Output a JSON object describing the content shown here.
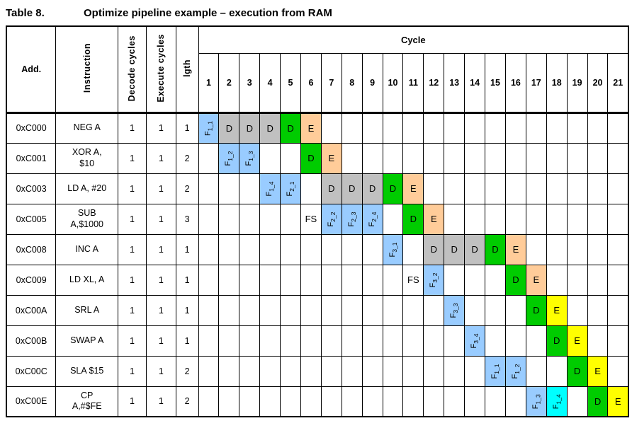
{
  "title": {
    "prefix": "Table 8.",
    "text": "Optimize pipeline example – execution from RAM"
  },
  "table": {
    "headers": {
      "add": "Add.",
      "instruction": "Instruction",
      "decode_cycles": "Decode cycles",
      "execute_cycles": "Execute  cycles",
      "length": "lgth",
      "cycle": "Cycle",
      "cycle_numbers": [
        "1",
        "2",
        "3",
        "4",
        "5",
        "6",
        "7",
        "8",
        "9",
        "10",
        "11",
        "12",
        "13",
        "14",
        "15",
        "16",
        "17",
        "18",
        "19",
        "20",
        "21"
      ]
    },
    "cell_colors": {
      "fetch": "#99CCFF",
      "fetch_alt": "#00FFFF",
      "stall": "#C0C0C0",
      "decode": "#00CC00",
      "execute": "#FFCC99",
      "execute_alt": "#FFFF00",
      "fs": "#FFFFFF"
    },
    "rows": [
      {
        "add": "0xC000",
        "instruction": "NEG A",
        "decode": "1",
        "execute": "1",
        "lgth": "1",
        "cells": [
          {
            "cycle": 1,
            "label": "F1_1",
            "type": "fetch",
            "rotated": true
          },
          {
            "cycle": 2,
            "label": "D",
            "type": "stall"
          },
          {
            "cycle": 3,
            "label": "D",
            "type": "stall"
          },
          {
            "cycle": 4,
            "label": "D",
            "type": "stall"
          },
          {
            "cycle": 5,
            "label": "D",
            "type": "decode"
          },
          {
            "cycle": 6,
            "label": "E",
            "type": "execute"
          }
        ]
      },
      {
        "add": "0xC001",
        "instruction": "XOR A,\n$10",
        "decode": "1",
        "execute": "1",
        "lgth": "2",
        "cells": [
          {
            "cycle": 2,
            "label": "F1_2",
            "type": "fetch",
            "rotated": true
          },
          {
            "cycle": 3,
            "label": "F1_3",
            "type": "fetch",
            "rotated": true
          },
          {
            "cycle": 6,
            "label": "D",
            "type": "decode"
          },
          {
            "cycle": 7,
            "label": "E",
            "type": "execute"
          }
        ]
      },
      {
        "add": "0xC003",
        "instruction": "LD  A, #20",
        "decode": "1",
        "execute": "1",
        "lgth": "2",
        "cells": [
          {
            "cycle": 4,
            "label": "F1_4",
            "type": "fetch",
            "rotated": true
          },
          {
            "cycle": 5,
            "label": "F2_1",
            "type": "fetch",
            "rotated": true
          },
          {
            "cycle": 7,
            "label": "D",
            "type": "stall"
          },
          {
            "cycle": 8,
            "label": "D",
            "type": "stall"
          },
          {
            "cycle": 9,
            "label": "D",
            "type": "stall"
          },
          {
            "cycle": 10,
            "label": "D",
            "type": "decode"
          },
          {
            "cycle": 11,
            "label": "E",
            "type": "execute"
          }
        ]
      },
      {
        "add": "0xC005",
        "instruction": "SUB\nA,$1000",
        "decode": "1",
        "execute": "1",
        "lgth": "3",
        "cells": [
          {
            "cycle": 6,
            "label": "FS",
            "type": "fs"
          },
          {
            "cycle": 7,
            "label": "F2_2",
            "type": "fetch",
            "rotated": true
          },
          {
            "cycle": 8,
            "label": "F2_3",
            "type": "fetch",
            "rotated": true
          },
          {
            "cycle": 9,
            "label": "F2_4",
            "type": "fetch",
            "rotated": true
          },
          {
            "cycle": 11,
            "label": "D",
            "type": "decode"
          },
          {
            "cycle": 12,
            "label": "E",
            "type": "execute"
          }
        ]
      },
      {
        "add": "0xC008",
        "instruction": "INC A",
        "decode": "1",
        "execute": "1",
        "lgth": "1",
        "cells": [
          {
            "cycle": 10,
            "label": "F3_1",
            "type": "fetch",
            "rotated": true
          },
          {
            "cycle": 12,
            "label": "D",
            "type": "stall"
          },
          {
            "cycle": 13,
            "label": "D",
            "type": "stall"
          },
          {
            "cycle": 14,
            "label": "D",
            "type": "stall"
          },
          {
            "cycle": 15,
            "label": "D",
            "type": "decode"
          },
          {
            "cycle": 16,
            "label": "E",
            "type": "execute"
          }
        ]
      },
      {
        "add": "0xC009",
        "instruction": "LD XL, A",
        "decode": "1",
        "execute": "1",
        "lgth": "1",
        "cells": [
          {
            "cycle": 11,
            "label": "FS",
            "type": "fs"
          },
          {
            "cycle": 12,
            "label": "F3_2",
            "type": "fetch",
            "rotated": true
          },
          {
            "cycle": 16,
            "label": "D",
            "type": "decode"
          },
          {
            "cycle": 17,
            "label": "E",
            "type": "execute"
          }
        ]
      },
      {
        "add": "0xC00A",
        "instruction": "SRL A",
        "decode": "1",
        "execute": "1",
        "lgth": "1",
        "cells": [
          {
            "cycle": 13,
            "label": "F3_3",
            "type": "fetch",
            "rotated": true
          },
          {
            "cycle": 17,
            "label": "D",
            "type": "decode"
          },
          {
            "cycle": 18,
            "label": "E",
            "type": "execute_alt"
          }
        ]
      },
      {
        "add": "0xC00B",
        "instruction": "SWAP A",
        "decode": "1",
        "execute": "1",
        "lgth": "1",
        "cells": [
          {
            "cycle": 14,
            "label": "F3_4",
            "type": "fetch",
            "rotated": true
          },
          {
            "cycle": 18,
            "label": "D",
            "type": "decode"
          },
          {
            "cycle": 19,
            "label": "E",
            "type": "execute_alt"
          }
        ]
      },
      {
        "add": "0xC00C",
        "instruction": "SLA $15",
        "decode": "1",
        "execute": "1",
        "lgth": "2",
        "cells": [
          {
            "cycle": 15,
            "label": "F1_1",
            "type": "fetch",
            "rotated": true
          },
          {
            "cycle": 16,
            "label": "F1_2",
            "type": "fetch",
            "rotated": true
          },
          {
            "cycle": 19,
            "label": "D",
            "type": "decode"
          },
          {
            "cycle": 20,
            "label": "E",
            "type": "execute_alt"
          }
        ]
      },
      {
        "add": "0xC00E",
        "instruction": "CP\nA,#$FE",
        "decode": "1",
        "execute": "1",
        "lgth": "2",
        "cells": [
          {
            "cycle": 17,
            "label": "F1_3",
            "type": "fetch",
            "rotated": true
          },
          {
            "cycle": 18,
            "label": "F1_4",
            "type": "fetch_alt",
            "rotated": true
          },
          {
            "cycle": 20,
            "label": "D",
            "type": "decode"
          },
          {
            "cycle": 21,
            "label": "E",
            "type": "execute_alt"
          }
        ]
      }
    ]
  }
}
